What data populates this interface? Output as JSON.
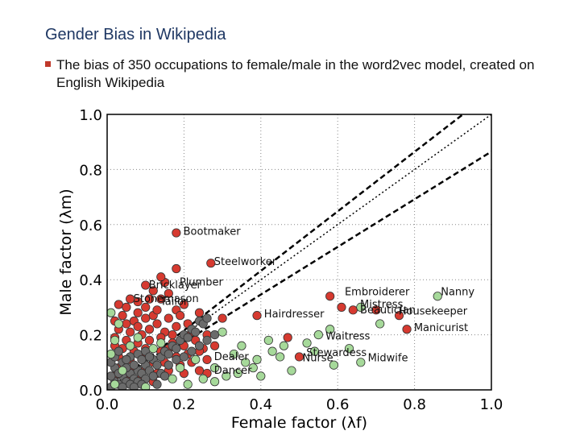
{
  "slide": {
    "title": "Gender Bias in Wikipedia",
    "bullet": "The bias of 350 occupations to female/male in the word2vec model, created on English Wikipedia"
  },
  "colors": {
    "male": "#d63a30",
    "female": "#a6d99a",
    "neutral": "#6b6b6b"
  },
  "chart_data": {
    "type": "scatter",
    "xlabel": "Female factor (λf)",
    "ylabel": "Male factor (λm)",
    "xlim": [
      0,
      1.0
    ],
    "ylim": [
      0,
      1.0
    ],
    "xticks": [
      0.0,
      0.2,
      0.4,
      0.6,
      0.8,
      1.0
    ],
    "yticks": [
      0.0,
      0.2,
      0.4,
      0.6,
      0.8,
      1.0
    ],
    "grid": true,
    "reference_lines": [
      {
        "name": "upper-dashed",
        "style": "dashed",
        "slope": 0.865
      },
      {
        "name": "diagonal-dotted",
        "style": "dotted",
        "slope": 1.0
      },
      {
        "name": "lower-dashed",
        "style": "dashed",
        "slope": 1.08
      }
    ],
    "series": [
      {
        "name": "male-biased",
        "color_key": "male",
        "points": [
          [
            0.18,
            0.57
          ],
          [
            0.27,
            0.46
          ],
          [
            0.18,
            0.44
          ],
          [
            0.15,
            0.39
          ],
          [
            0.14,
            0.41
          ],
          [
            0.1,
            0.38
          ],
          [
            0.06,
            0.33
          ],
          [
            0.03,
            0.31
          ],
          [
            0.05,
            0.3
          ],
          [
            0.08,
            0.32
          ],
          [
            0.12,
            0.36
          ],
          [
            0.1,
            0.3
          ],
          [
            0.14,
            0.33
          ],
          [
            0.16,
            0.35
          ],
          [
            0.2,
            0.31
          ],
          [
            0.18,
            0.29
          ],
          [
            0.12,
            0.27
          ],
          [
            0.08,
            0.28
          ],
          [
            0.04,
            0.27
          ],
          [
            0.02,
            0.25
          ],
          [
            0.05,
            0.24
          ],
          [
            0.07,
            0.25
          ],
          [
            0.1,
            0.26
          ],
          [
            0.13,
            0.24
          ],
          [
            0.16,
            0.26
          ],
          [
            0.18,
            0.23
          ],
          [
            0.15,
            0.21
          ],
          [
            0.11,
            0.22
          ],
          [
            0.09,
            0.2
          ],
          [
            0.06,
            0.21
          ],
          [
            0.03,
            0.22
          ],
          [
            0.02,
            0.19
          ],
          [
            0.05,
            0.18
          ],
          [
            0.08,
            0.17
          ],
          [
            0.11,
            0.18
          ],
          [
            0.14,
            0.19
          ],
          [
            0.17,
            0.17
          ],
          [
            0.2,
            0.16
          ],
          [
            0.23,
            0.18
          ],
          [
            0.25,
            0.15
          ],
          [
            0.21,
            0.13
          ],
          [
            0.18,
            0.12
          ],
          [
            0.14,
            0.14
          ],
          [
            0.1,
            0.15
          ],
          [
            0.07,
            0.14
          ],
          [
            0.04,
            0.15
          ],
          [
            0.02,
            0.16
          ],
          [
            0.03,
            0.12
          ],
          [
            0.06,
            0.11
          ],
          [
            0.09,
            0.12
          ],
          [
            0.12,
            0.1
          ],
          [
            0.15,
            0.1
          ],
          [
            0.19,
            0.09
          ],
          [
            0.22,
            0.1
          ],
          [
            0.26,
            0.11
          ],
          [
            0.24,
            0.07
          ],
          [
            0.2,
            0.06
          ],
          [
            0.16,
            0.07
          ],
          [
            0.13,
            0.06
          ],
          [
            0.1,
            0.08
          ],
          [
            0.06,
            0.07
          ],
          [
            0.03,
            0.08
          ],
          [
            0.02,
            0.05
          ],
          [
            0.05,
            0.04
          ],
          [
            0.09,
            0.05
          ],
          [
            0.12,
            0.03
          ],
          [
            0.26,
            0.06
          ],
          [
            0.39,
            0.27
          ],
          [
            0.47,
            0.19
          ],
          [
            0.5,
            0.12
          ],
          [
            0.58,
            0.34
          ],
          [
            0.61,
            0.3
          ],
          [
            0.64,
            0.29
          ],
          [
            0.7,
            0.29
          ],
          [
            0.76,
            0.27
          ],
          [
            0.78,
            0.22
          ],
          [
            0.22,
            0.21
          ],
          [
            0.26,
            0.2
          ],
          [
            0.3,
            0.26
          ],
          [
            0.24,
            0.28
          ],
          [
            0.19,
            0.27
          ],
          [
            0.21,
            0.24
          ],
          [
            0.13,
            0.29
          ],
          [
            0.11,
            0.33
          ],
          [
            0.08,
            0.23
          ],
          [
            0.16,
            0.15
          ],
          [
            0.17,
            0.2
          ],
          [
            0.24,
            0.14
          ],
          [
            0.28,
            0.16
          ]
        ]
      },
      {
        "name": "neutral",
        "color_key": "neutral",
        "points": [
          [
            0.01,
            0.01
          ],
          [
            0.02,
            0.03
          ],
          [
            0.03,
            0.02
          ],
          [
            0.04,
            0.05
          ],
          [
            0.05,
            0.03
          ],
          [
            0.06,
            0.06
          ],
          [
            0.07,
            0.04
          ],
          [
            0.08,
            0.07
          ],
          [
            0.09,
            0.06
          ],
          [
            0.1,
            0.09
          ],
          [
            0.11,
            0.07
          ],
          [
            0.12,
            0.11
          ],
          [
            0.13,
            0.09
          ],
          [
            0.14,
            0.12
          ],
          [
            0.15,
            0.14
          ],
          [
            0.16,
            0.13
          ],
          [
            0.17,
            0.16
          ],
          [
            0.18,
            0.15
          ],
          [
            0.19,
            0.18
          ],
          [
            0.2,
            0.2
          ],
          [
            0.21,
            0.19
          ],
          [
            0.22,
            0.22
          ],
          [
            0.23,
            0.21
          ],
          [
            0.24,
            0.25
          ],
          [
            0.25,
            0.24
          ],
          [
            0.26,
            0.26
          ],
          [
            0.01,
            0.05
          ],
          [
            0.02,
            0.08
          ],
          [
            0.03,
            0.06
          ],
          [
            0.04,
            0.1
          ],
          [
            0.05,
            0.08
          ],
          [
            0.06,
            0.12
          ],
          [
            0.07,
            0.09
          ],
          [
            0.08,
            0.13
          ],
          [
            0.09,
            0.11
          ],
          [
            0.1,
            0.14
          ],
          [
            0.11,
            0.12
          ],
          [
            0.01,
            0.1
          ],
          [
            0.02,
            0.12
          ],
          [
            0.03,
            0.14
          ],
          [
            0.05,
            0.11
          ],
          [
            0.06,
            0.02
          ],
          [
            0.08,
            0.03
          ],
          [
            0.1,
            0.04
          ],
          [
            0.12,
            0.05
          ],
          [
            0.14,
            0.06
          ],
          [
            0.16,
            0.09
          ],
          [
            0.18,
            0.11
          ],
          [
            0.2,
            0.12
          ],
          [
            0.22,
            0.14
          ],
          [
            0.24,
            0.16
          ],
          [
            0.26,
            0.18
          ],
          [
            0.28,
            0.2
          ],
          [
            0.15,
            0.05
          ],
          [
            0.13,
            0.02
          ],
          [
            0.04,
            0.01
          ],
          [
            0.07,
            0.01
          ],
          [
            0.09,
            0.02
          ]
        ]
      },
      {
        "name": "female-biased",
        "color_key": "female",
        "points": [
          [
            0.86,
            0.34
          ],
          [
            0.55,
            0.2
          ],
          [
            0.63,
            0.15
          ],
          [
            0.66,
            0.3
          ],
          [
            0.66,
            0.1
          ],
          [
            0.45,
            0.12
          ],
          [
            0.38,
            0.08
          ],
          [
            0.43,
            0.14
          ],
          [
            0.31,
            0.05
          ],
          [
            0.39,
            0.11
          ],
          [
            0.48,
            0.07
          ],
          [
            0.54,
            0.14
          ],
          [
            0.59,
            0.09
          ],
          [
            0.35,
            0.16
          ],
          [
            0.28,
            0.08
          ],
          [
            0.25,
            0.04
          ],
          [
            0.33,
            0.13
          ],
          [
            0.42,
            0.18
          ],
          [
            0.52,
            0.17
          ],
          [
            0.58,
            0.22
          ],
          [
            0.71,
            0.24
          ],
          [
            0.3,
            0.21
          ],
          [
            0.36,
            0.1
          ],
          [
            0.4,
            0.05
          ],
          [
            0.21,
            0.02
          ],
          [
            0.28,
            0.03
          ],
          [
            0.34,
            0.06
          ],
          [
            0.46,
            0.16
          ],
          [
            0.02,
            0.02
          ],
          [
            0.04,
            0.07
          ],
          [
            0.01,
            0.13
          ],
          [
            0.02,
            0.18
          ],
          [
            0.03,
            0.24
          ],
          [
            0.01,
            0.28
          ],
          [
            0.06,
            0.16
          ],
          [
            0.08,
            0.19
          ],
          [
            0.12,
            0.15
          ],
          [
            0.14,
            0.17
          ],
          [
            0.19,
            0.08
          ],
          [
            0.23,
            0.11
          ],
          [
            0.1,
            0.01
          ],
          [
            0.17,
            0.04
          ]
        ]
      }
    ],
    "annotations": [
      {
        "text": "Bootmaker",
        "x": 0.19,
        "y": 0.575
      },
      {
        "text": "Steelworker",
        "x": 0.27,
        "y": 0.465
      },
      {
        "text": "Bricklayer",
        "x": 0.1,
        "y": 0.38
      },
      {
        "text": "Plumber",
        "x": 0.18,
        "y": 0.39
      },
      {
        "text": "Stonemason",
        "x": 0.06,
        "y": 0.33
      },
      {
        "text": "Tailor",
        "x": 0.13,
        "y": 0.32
      },
      {
        "text": "Embroiderer",
        "x": 0.61,
        "y": 0.355
      },
      {
        "text": "Nanny",
        "x": 0.86,
        "y": 0.355
      },
      {
        "text": "Mistress",
        "x": 0.65,
        "y": 0.31
      },
      {
        "text": "Beautician",
        "x": 0.65,
        "y": 0.29
      },
      {
        "text": "Housekeeper",
        "x": 0.75,
        "y": 0.285
      },
      {
        "text": "Hairdresser",
        "x": 0.4,
        "y": 0.275
      },
      {
        "text": "Manicurist",
        "x": 0.79,
        "y": 0.225
      },
      {
        "text": "Waitress",
        "x": 0.56,
        "y": 0.195
      },
      {
        "text": "Stewardess",
        "x": 0.51,
        "y": 0.135
      },
      {
        "text": "Nurse",
        "x": 0.5,
        "y": 0.115
      },
      {
        "text": "Midwife",
        "x": 0.67,
        "y": 0.115
      },
      {
        "text": "Dealer",
        "x": 0.27,
        "y": 0.12
      },
      {
        "text": "Dancer",
        "x": 0.27,
        "y": 0.07
      }
    ]
  }
}
